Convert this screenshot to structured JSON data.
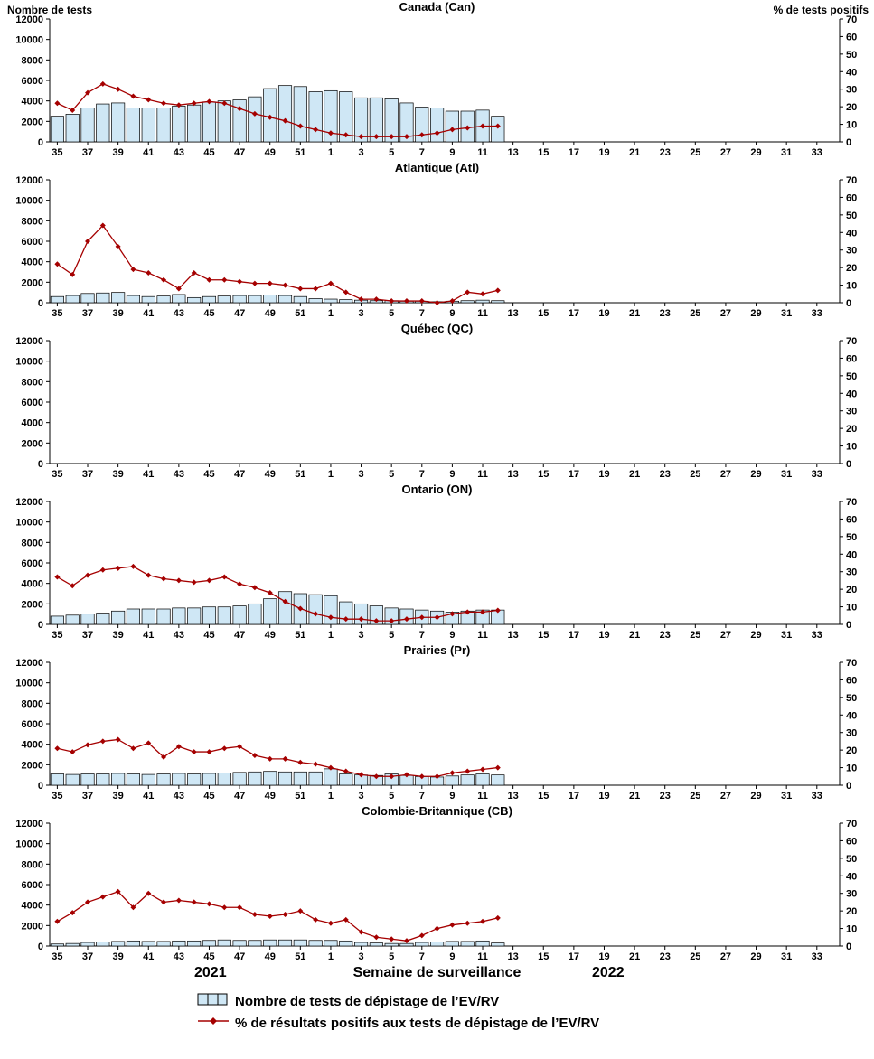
{
  "labels": {
    "left_axis": "Nombre de tests",
    "right_axis": "% de tests positifs",
    "xlabel": "Semaine de surveillance",
    "year_left": "2021",
    "year_right": "2022"
  },
  "legend": [
    {
      "type": "bar",
      "label": "Nombre de tests de dépistage de l’EV/RV"
    },
    {
      "type": "line",
      "label": "% de résultats positifs aux tests de dépistage de l’EV/RV"
    }
  ],
  "colors": {
    "bar_fill": "#cfe7f5",
    "bar_stroke": "#000000",
    "line": "#a50000",
    "axis": "#000000"
  },
  "x_axis": {
    "total_slots": 52,
    "weeks_2021": [
      35,
      36,
      37,
      38,
      39,
      40,
      41,
      42,
      43,
      44,
      45,
      46,
      47,
      48,
      49,
      50,
      51,
      52
    ],
    "weeks_2022_count": 34,
    "tick_labels": [
      "35",
      "37",
      "39",
      "41",
      "43",
      "45",
      "47",
      "49",
      "51",
      "1",
      "3",
      "5",
      "7",
      "9",
      "11",
      "13",
      "15",
      "17",
      "19",
      "21",
      "23",
      "25",
      "27",
      "29",
      "31",
      "33"
    ]
  },
  "y_left": {
    "min": 0,
    "max": 12000,
    "step": 2000
  },
  "y_right": {
    "min": 0,
    "max": 70,
    "step": 10
  },
  "chart_data": [
    {
      "type": "bar+line",
      "title": "Canada (Can)",
      "region": "Can",
      "weeks": [
        35,
        36,
        37,
        38,
        39,
        40,
        41,
        42,
        43,
        44,
        45,
        46,
        47,
        48,
        49,
        50,
        51,
        52,
        1,
        2,
        3,
        4,
        5,
        6,
        7,
        8,
        9,
        10,
        11,
        12
      ],
      "tests": [
        2500,
        2700,
        3300,
        3700,
        3800,
        3300,
        3300,
        3300,
        3500,
        3600,
        3900,
        4000,
        4100,
        4400,
        5200,
        5500,
        5400,
        4900,
        5000,
        4900,
        4300,
        4300,
        4200,
        3800,
        3400,
        3300,
        3000,
        3000,
        3100,
        2500
      ],
      "pct_positive": [
        22,
        18,
        28,
        33,
        30,
        26,
        24,
        22,
        21,
        22,
        23,
        22,
        19,
        16,
        14,
        12,
        9,
        7,
        5,
        4,
        3,
        3,
        3,
        3,
        4,
        5,
        7,
        8,
        9,
        9
      ]
    },
    {
      "type": "bar+line",
      "title": "Atlantique (Atl)",
      "region": "Atl",
      "weeks": [
        35,
        36,
        37,
        38,
        39,
        40,
        41,
        42,
        43,
        44,
        45,
        46,
        47,
        48,
        49,
        50,
        51,
        52,
        1,
        2,
        3,
        4,
        5,
        6,
        7,
        8,
        9,
        10,
        11,
        12
      ],
      "tests": [
        600,
        700,
        900,
        950,
        1000,
        700,
        600,
        650,
        800,
        500,
        600,
        650,
        700,
        700,
        750,
        700,
        600,
        400,
        350,
        300,
        250,
        200,
        200,
        150,
        150,
        100,
        150,
        200,
        250,
        200
      ],
      "pct_positive": [
        22,
        16,
        35,
        44,
        32,
        19,
        17,
        13,
        8,
        17,
        13,
        13,
        12,
        11,
        11,
        10,
        8,
        8,
        11,
        6,
        2,
        2,
        1,
        1,
        1,
        0,
        1,
        6,
        5,
        7
      ]
    },
    {
      "type": "bar+line",
      "title": "Québec (QC)",
      "region": "QC",
      "weeks": [],
      "tests": [],
      "pct_positive": []
    },
    {
      "type": "bar+line",
      "title": "Ontario (ON)",
      "region": "ON",
      "weeks": [
        35,
        36,
        37,
        38,
        39,
        40,
        41,
        42,
        43,
        44,
        45,
        46,
        47,
        48,
        49,
        50,
        51,
        52,
        1,
        2,
        3,
        4,
        5,
        6,
        7,
        8,
        9,
        10,
        11,
        12
      ],
      "tests": [
        800,
        900,
        1000,
        1100,
        1300,
        1500,
        1500,
        1500,
        1600,
        1600,
        1700,
        1700,
        1800,
        2000,
        2500,
        3200,
        3000,
        2900,
        2800,
        2200,
        2000,
        1800,
        1600,
        1500,
        1400,
        1300,
        1200,
        1300,
        1400,
        1400
      ],
      "pct_positive": [
        27,
        22,
        28,
        31,
        32,
        33,
        28,
        26,
        25,
        24,
        25,
        27,
        23,
        21,
        18,
        13,
        9,
        6,
        4,
        3,
        3,
        2,
        2,
        3,
        4,
        4,
        6,
        7,
        7,
        8
      ]
    },
    {
      "type": "bar+line",
      "title": "Prairies (Pr)",
      "region": "Pr",
      "weeks": [
        35,
        36,
        37,
        38,
        39,
        40,
        41,
        42,
        43,
        44,
        45,
        46,
        47,
        48,
        49,
        50,
        51,
        52,
        1,
        2,
        3,
        4,
        5,
        6,
        7,
        8,
        9,
        10,
        11,
        12
      ],
      "tests": [
        1100,
        1050,
        1100,
        1100,
        1150,
        1100,
        1050,
        1100,
        1150,
        1100,
        1150,
        1200,
        1250,
        1300,
        1350,
        1300,
        1300,
        1300,
        1600,
        1100,
        1000,
        950,
        1100,
        950,
        850,
        800,
        900,
        1000,
        1100,
        1000
      ],
      "pct_positive": [
        21,
        19,
        23,
        25,
        26,
        21,
        24,
        16,
        22,
        19,
        19,
        21,
        22,
        17,
        15,
        15,
        13,
        12,
        10,
        8,
        6,
        5,
        5,
        6,
        5,
        5,
        7,
        8,
        9,
        10
      ]
    },
    {
      "type": "bar+line",
      "title": "Colombie-Britannique (CB)",
      "region": "CB",
      "weeks": [
        35,
        36,
        37,
        38,
        39,
        40,
        41,
        42,
        43,
        44,
        45,
        46,
        47,
        48,
        49,
        50,
        51,
        52,
        1,
        2,
        3,
        4,
        5,
        6,
        7,
        8,
        9,
        10,
        11,
        12
      ],
      "tests": [
        200,
        250,
        350,
        400,
        450,
        500,
        450,
        450,
        500,
        500,
        550,
        600,
        550,
        550,
        600,
        600,
        600,
        550,
        550,
        500,
        350,
        300,
        250,
        250,
        350,
        400,
        450,
        450,
        500,
        300
      ],
      "pct_positive": [
        14,
        19,
        25,
        28,
        31,
        22,
        30,
        25,
        26,
        25,
        24,
        22,
        22,
        18,
        17,
        18,
        20,
        15,
        13,
        15,
        8,
        5,
        4,
        3,
        6,
        10,
        12,
        13,
        14,
        16
      ]
    }
  ]
}
